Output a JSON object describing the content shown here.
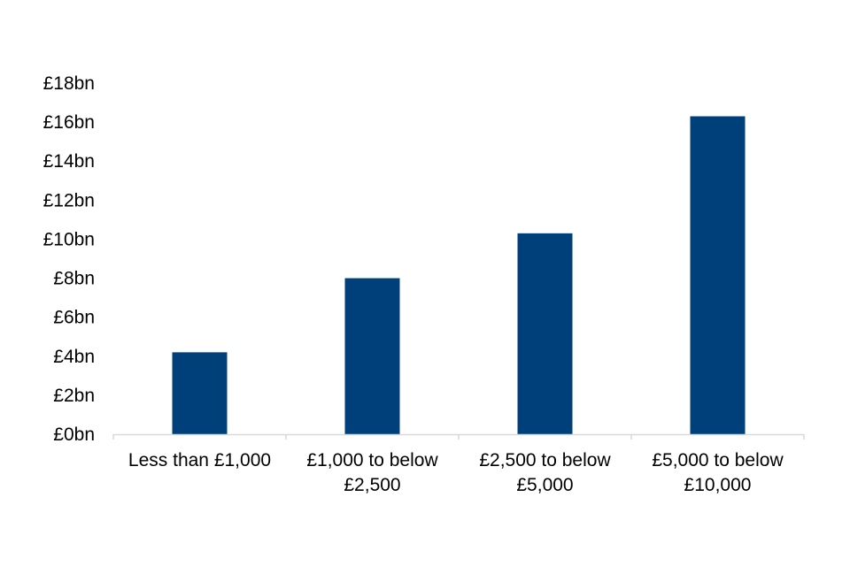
{
  "chart_data": {
    "type": "bar",
    "title": "",
    "xlabel": "",
    "ylabel": "",
    "categories": [
      [
        "Less than £1,000"
      ],
      [
        "£1,000 to below",
        "£2,500"
      ],
      [
        "£2,500 to below",
        "£5,000"
      ],
      [
        "£5,000 to below",
        "£10,000"
      ]
    ],
    "values": [
      4.2,
      8.0,
      10.3,
      16.3
    ],
    "unit": "bn",
    "ylim": [
      0,
      18
    ],
    "yticks": [
      0,
      2,
      4,
      6,
      8,
      10,
      12,
      14,
      16,
      18
    ],
    "ytick_labels": [
      "£0bn",
      "£2bn",
      "£4bn",
      "£6bn",
      "£8bn",
      "£10bn",
      "£12bn",
      "£14bn",
      "£16bn",
      "£18bn"
    ],
    "grid": false,
    "legend": "none",
    "colors": {
      "bar": "#00407A",
      "axis": "#D9D9D9"
    }
  }
}
